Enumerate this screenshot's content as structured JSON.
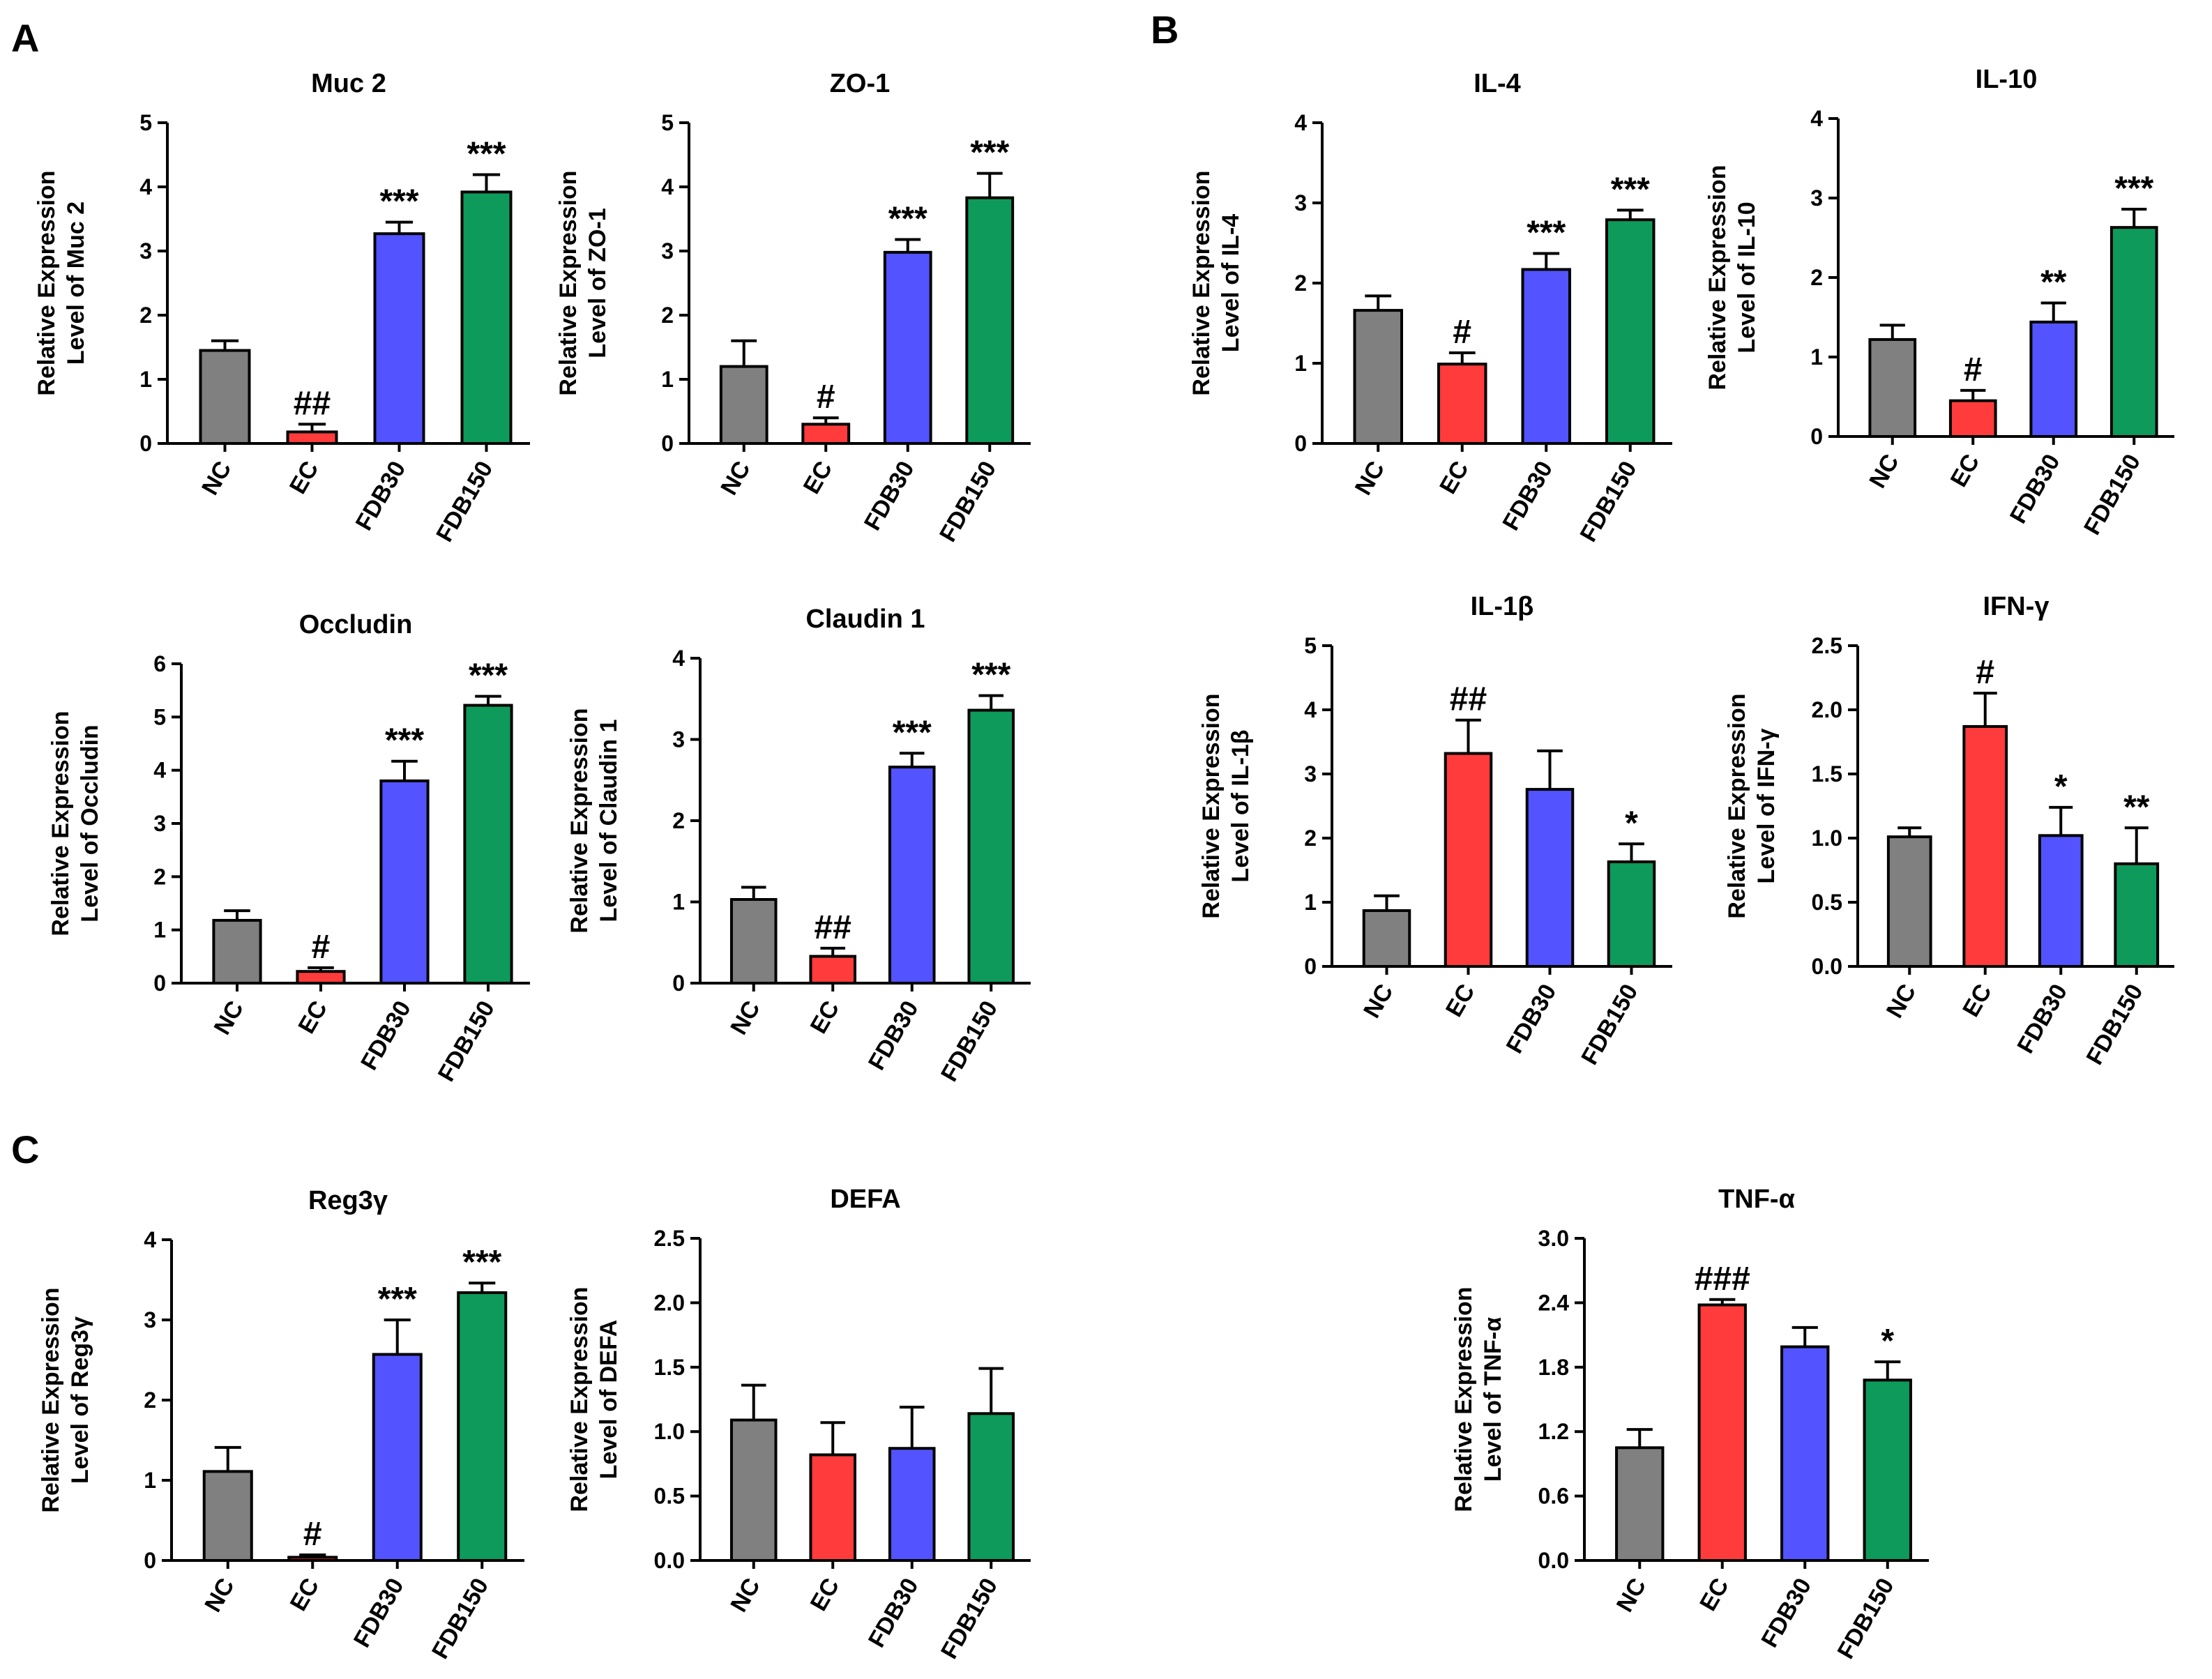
{
  "panel_labels": [
    "A",
    "B",
    "C"
  ],
  "colors": {
    "NC": "#808080",
    "EC": "#ff3b3b",
    "FDB30": "#5353ff",
    "FDB150": "#0e9a5a"
  },
  "chart_data": [
    {
      "id": "muc2",
      "type": "bar",
      "title": "Muc 2",
      "ylabel": [
        "Relative Expression",
        "Level of Muc 2"
      ],
      "categories": [
        "NC",
        "EC",
        "FDB30",
        "FDB150"
      ],
      "values": [
        1.45,
        0.18,
        3.27,
        3.92
      ],
      "errors": [
        0.15,
        0.12,
        0.18,
        0.27
      ],
      "ylim": [
        0,
        5
      ],
      "yticks": [
        "0",
        "1",
        "2",
        "3",
        "4",
        "5"
      ],
      "annotations": [
        "",
        "##",
        "***",
        "***"
      ]
    },
    {
      "id": "zo1",
      "type": "bar",
      "title": "ZO-1",
      "ylabel": [
        "Relative Expression",
        "Level of ZO-1"
      ],
      "categories": [
        "NC",
        "EC",
        "FDB30",
        "FDB150"
      ],
      "values": [
        1.2,
        0.3,
        2.98,
        3.83
      ],
      "errors": [
        0.4,
        0.1,
        0.2,
        0.38
      ],
      "ylim": [
        0,
        5
      ],
      "yticks": [
        "0",
        "1",
        "2",
        "3",
        "4",
        "5"
      ],
      "annotations": [
        "",
        "#",
        "***",
        "***"
      ]
    },
    {
      "id": "il4",
      "type": "bar",
      "title": "IL-4",
      "ylabel": [
        "Relative Expression",
        "Level of IL-4"
      ],
      "categories": [
        "NC",
        "EC",
        "FDB30",
        "FDB150"
      ],
      "values": [
        1.66,
        0.99,
        2.17,
        2.79
      ],
      "errors": [
        0.18,
        0.14,
        0.2,
        0.12
      ],
      "ylim": [
        0,
        4
      ],
      "yticks": [
        "0",
        "1",
        "2",
        "3",
        "4"
      ],
      "annotations": [
        "",
        "#",
        "***",
        "***"
      ]
    },
    {
      "id": "il10",
      "type": "bar",
      "title": "IL-10",
      "ylabel": [
        "Relative Expression",
        "Level of IL-10"
      ],
      "categories": [
        "NC",
        "EC",
        "FDB30",
        "FDB150"
      ],
      "values": [
        1.22,
        0.45,
        1.44,
        2.63
      ],
      "errors": [
        0.18,
        0.13,
        0.24,
        0.23
      ],
      "ylim": [
        0,
        4
      ],
      "yticks": [
        "0",
        "1",
        "2",
        "3",
        "4"
      ],
      "annotations": [
        "",
        "#",
        "**",
        "***"
      ]
    },
    {
      "id": "occludin",
      "type": "bar",
      "title": "Occludin",
      "ylabel": [
        "Relative Expression",
        "Level of Occludin"
      ],
      "categories": [
        "NC",
        "EC",
        "FDB30",
        "FDB150"
      ],
      "values": [
        1.18,
        0.22,
        3.8,
        5.22
      ],
      "errors": [
        0.18,
        0.07,
        0.37,
        0.17
      ],
      "ylim": [
        0,
        6
      ],
      "yticks": [
        "0",
        "1",
        "2",
        "3",
        "4",
        "5",
        "6"
      ],
      "annotations": [
        "",
        "#",
        "***",
        "***"
      ]
    },
    {
      "id": "claudin1",
      "type": "bar",
      "title": "Claudin 1",
      "ylabel": [
        "Relative Expression",
        "Level of Claudin 1"
      ],
      "categories": [
        "NC",
        "EC",
        "FDB30",
        "FDB150"
      ],
      "values": [
        1.03,
        0.33,
        2.66,
        3.36
      ],
      "errors": [
        0.15,
        0.1,
        0.17,
        0.18
      ],
      "ylim": [
        0,
        4
      ],
      "yticks": [
        "0",
        "1",
        "2",
        "3",
        "4"
      ],
      "annotations": [
        "",
        "##",
        "***",
        "***"
      ]
    },
    {
      "id": "il1b",
      "type": "bar",
      "title": "IL-1β",
      "ylabel": [
        "Relative Expression",
        "Level of IL-1β"
      ],
      "categories": [
        "NC",
        "EC",
        "FDB30",
        "FDB150"
      ],
      "values": [
        0.87,
        3.32,
        2.76,
        1.63
      ],
      "errors": [
        0.23,
        0.52,
        0.6,
        0.28
      ],
      "ylim": [
        0,
        5
      ],
      "yticks": [
        "0",
        "1",
        "2",
        "3",
        "4",
        "5"
      ],
      "annotations": [
        "",
        "##",
        "",
        "*"
      ]
    },
    {
      "id": "ifng",
      "type": "bar",
      "title": "IFN-γ",
      "ylabel": [
        "Relative Expression",
        "Level of IFN-γ"
      ],
      "categories": [
        "NC",
        "EC",
        "FDB30",
        "FDB150"
      ],
      "values": [
        1.01,
        1.87,
        1.02,
        0.8
      ],
      "errors": [
        0.07,
        0.26,
        0.22,
        0.28
      ],
      "ylim": [
        0,
        2.5
      ],
      "yticks": [
        "0.0",
        "0.5",
        "1.0",
        "1.5",
        "2.0",
        "2.5"
      ],
      "annotations": [
        "",
        "#",
        "*",
        "**"
      ]
    },
    {
      "id": "reg3g",
      "type": "bar",
      "title": "Reg3γ",
      "ylabel": [
        "Relative Expression",
        "Level of Reg3γ"
      ],
      "categories": [
        "NC",
        "EC",
        "FDB30",
        "FDB150"
      ],
      "values": [
        1.11,
        0.04,
        2.57,
        3.34
      ],
      "errors": [
        0.3,
        0.03,
        0.43,
        0.12
      ],
      "ylim": [
        0,
        4
      ],
      "yticks": [
        "0",
        "1",
        "2",
        "3",
        "4"
      ],
      "annotations": [
        "",
        "#",
        "***",
        "***"
      ]
    },
    {
      "id": "defa",
      "type": "bar",
      "title": "DEFA",
      "ylabel": [
        "Relative Expression",
        "Level of DEFA"
      ],
      "categories": [
        "NC",
        "EC",
        "FDB30",
        "FDB150"
      ],
      "values": [
        1.09,
        0.82,
        0.87,
        1.14
      ],
      "errors": [
        0.27,
        0.25,
        0.32,
        0.35
      ],
      "ylim": [
        0,
        2.5
      ],
      "yticks": [
        "0.0",
        "0.5",
        "1.0",
        "1.5",
        "2.0",
        "2.5"
      ],
      "annotations": [
        "",
        "",
        "",
        ""
      ]
    },
    {
      "id": "tnfa",
      "type": "bar",
      "title": "TNF-α",
      "ylabel": [
        "Relative Expression",
        "Level of TNF-α"
      ],
      "categories": [
        "NC",
        "EC",
        "FDB30",
        "FDB150"
      ],
      "values": [
        1.05,
        2.38,
        1.99,
        1.68
      ],
      "errors": [
        0.17,
        0.05,
        0.18,
        0.17
      ],
      "ylim": [
        0,
        3
      ],
      "yticks": [
        "0.0",
        "0.6",
        "1.2",
        "1.8",
        "2.4",
        "3.0"
      ],
      "annotations": [
        "",
        "###",
        "",
        "*"
      ]
    }
  ]
}
